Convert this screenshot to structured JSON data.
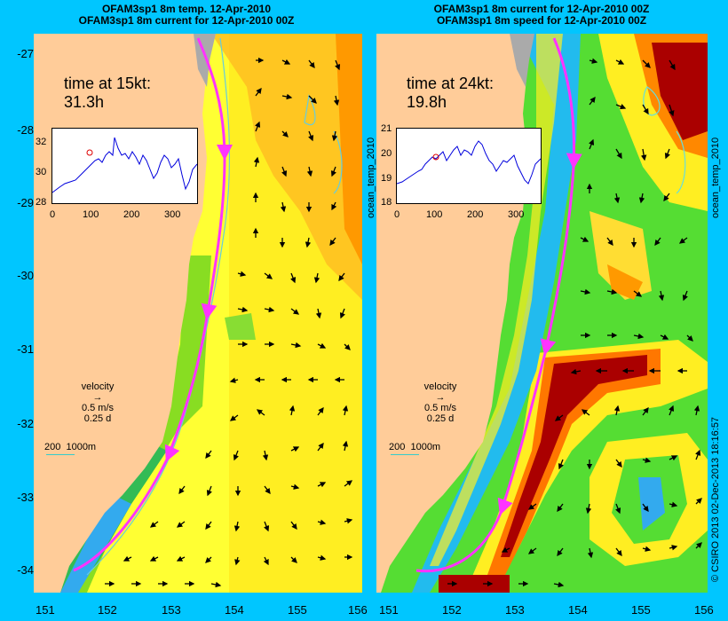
{
  "left_panel": {
    "title_line1": "OFAM3sp1 8m temp. 12-Apr-2010",
    "title_line2": "OFAM3sp1 8m current for 12-Apr-2010 00Z",
    "time_label": "time at 15kt:",
    "time_value": "31.3h",
    "inset_yticks": [
      "32",
      "30",
      "28"
    ],
    "inset_xticks": [
      "0",
      "100",
      "200",
      "300"
    ],
    "velocity_label": "velocity",
    "velocity_speed": "0.5 m/s",
    "velocity_days": "0.25 d",
    "depth_label": "200  1000m"
  },
  "right_panel": {
    "title_line1": "OFAM3sp1 8m current for 12-Apr-2010 00Z",
    "title_line2": "OFAM3sp1 8m speed for 12-Apr-2010 00Z",
    "time_label": "time at 24kt:",
    "time_value": "19.8h",
    "inset_yticks": [
      "21",
      "20",
      "19",
      "18"
    ],
    "inset_xticks": [
      "0",
      "100",
      "200",
      "300"
    ],
    "inset_vlabel": "ocean_temp_2010",
    "velocity_label": "velocity",
    "velocity_speed": "0.5 m/s",
    "velocity_days": "0.25 d",
    "depth_label": "200  1000m"
  },
  "right_vlabel": "ocean_temp_2010",
  "credit": "© CSIRO 2013   02-Dec-2013 18:16:57",
  "lat_ticks": [
    "-27",
    "-28",
    "-29",
    "-30",
    "-31",
    "-32",
    "-33",
    "-34"
  ],
  "lon_ticks": [
    "151",
    "152",
    "153",
    "154",
    "155",
    "156"
  ],
  "colors": {
    "background": "#00c6ff",
    "land": "#ffcc99",
    "warm": "#ffaa00",
    "yellow": "#ffff33",
    "green": "#33cc55",
    "dark_red": "#aa0000",
    "track": "#ff33ff"
  }
}
